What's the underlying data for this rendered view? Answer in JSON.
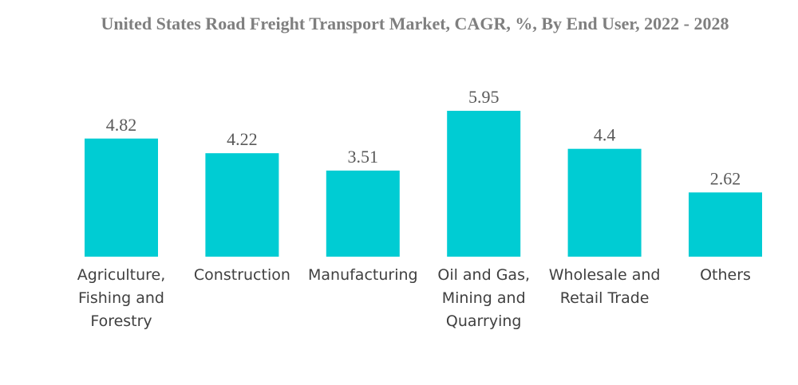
{
  "chart_data": {
    "type": "bar",
    "title": "United States Road Freight Transport Market, CAGR, %, By End User, 2022 - 2028",
    "categories": [
      [
        "Agriculture,",
        "Fishing and",
        "Forestry"
      ],
      [
        "Construction"
      ],
      [
        "Manufacturing"
      ],
      [
        "Oil and Gas,",
        "Mining and",
        "Quarrying"
      ],
      [
        "Wholesale and",
        "Retail Trade"
      ],
      [
        "Others"
      ]
    ],
    "values": [
      4.82,
      4.22,
      3.51,
      5.95,
      4.4,
      2.62
    ],
    "value_labels": [
      "4.82",
      "4.22",
      "3.51",
      "5.95",
      "4.4",
      "2.62"
    ],
    "xlabel": "",
    "ylabel": "",
    "ylim": [
      0,
      5.95
    ],
    "grid": false,
    "legend": "none",
    "colors": {
      "bar": "#00ccd3"
    }
  }
}
